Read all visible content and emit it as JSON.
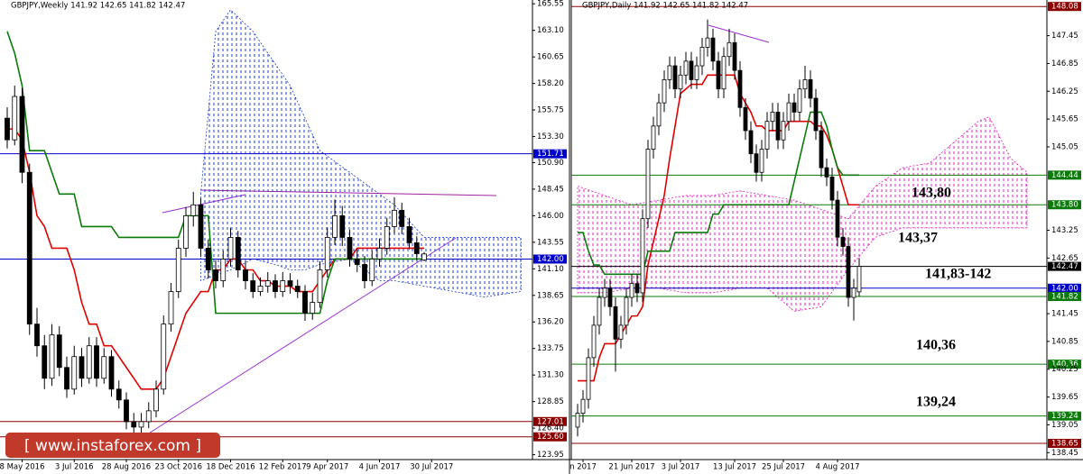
{
  "chart_data": [
    {
      "type": "candlestick",
      "title": "GBPJPY,Weekly  141.92 142.65 141.82 142.47",
      "watermark": "[ www.instaforex.com ]",
      "ylim": [
        123.5,
        165.9
      ],
      "yticks": [
        165.55,
        {
          "value": 163.1,
          "label": "163.10"
        },
        160.65,
        {
          "value": 158.2,
          "label": "158.20"
        },
        155.75,
        {
          "value": 153.3,
          "label": "153.30"
        },
        {
          "value": 150.9,
          "label": "150.90"
        },
        148.45,
        {
          "value": 146,
          "label": "146.00"
        },
        143.55,
        {
          "value": 141.1,
          "label": "141.10"
        },
        138.65,
        {
          "value": 136.2,
          "label": "136.20"
        },
        133.75,
        {
          "value": 131.3,
          "label": "131.30"
        },
        128.85,
        {
          "value": 126.4,
          "label": "126.40"
        },
        123.95
      ],
      "xticks": [
        {
          "value": 2,
          "label": "8 May 2016"
        },
        {
          "value": 9,
          "label": "3 Jul 2016"
        },
        {
          "value": 16,
          "label": "28 Aug 2016"
        },
        {
          "value": 23,
          "label": "23 Oct 2016"
        },
        {
          "value": 30,
          "label": "18 Dec 2016"
        },
        {
          "value": 37,
          "label": "12 Feb 2017"
        },
        {
          "value": 43,
          "label": "9 Apr 2017"
        },
        {
          "value": 50,
          "label": "4 Jun 2017"
        },
        {
          "value": 57,
          "label": "30 Jul 2017"
        }
      ],
      "levels": [
        {
          "value": 151.71,
          "color": "#0000cc"
        },
        {
          "value": 142,
          "label": "142.00",
          "color": "#0000cc"
        },
        {
          "value": 127.01,
          "color": "#8b0000"
        },
        {
          "value": 125.6,
          "label": "125.60",
          "color": "#8b0000"
        }
      ],
      "cloud": {
        "color": "#1f3fd0",
        "x": [
          26,
          28,
          30,
          33,
          36,
          38,
          40,
          42,
          46,
          50,
          52,
          56,
          60,
          64,
          69
        ],
        "top": [
          148,
          163,
          165,
          163,
          160,
          158,
          155,
          152,
          150,
          148,
          147,
          144,
          144,
          144,
          144
        ],
        "bottom": [
          140,
          140.5,
          141,
          142,
          141.5,
          141,
          141,
          141.5,
          142,
          140,
          140,
          139.5,
          139,
          138.5,
          139
        ]
      },
      "lines": [
        {
          "color": "#e00000",
          "values": [
            154,
            154,
            153,
            150,
            146,
            145,
            143,
            143,
            143,
            141,
            138,
            136,
            136,
            134,
            134,
            133,
            132,
            131,
            130,
            130,
            130,
            131,
            133,
            135,
            137,
            138,
            139,
            139,
            141,
            141,
            142,
            142,
            141,
            141,
            140,
            140,
            139.5,
            139.5,
            139.5,
            139,
            139,
            139,
            140,
            141,
            142,
            142,
            142,
            143,
            143,
            143,
            143,
            143,
            143,
            143,
            143,
            143,
            143
          ]
        },
        {
          "color": "#0a7a0a",
          "values": [
            163,
            161,
            158,
            152,
            152,
            152,
            150,
            148,
            148,
            148,
            145,
            145,
            145,
            145,
            145,
            144,
            144,
            144,
            144,
            144,
            144,
            144,
            144,
            144,
            146,
            146,
            146,
            146,
            137,
            137,
            137,
            137,
            137,
            137,
            137,
            137,
            137,
            137,
            137,
            137,
            137,
            137,
            137,
            140,
            142,
            142,
            142,
            142,
            142,
            142,
            142,
            142,
            142,
            142,
            142,
            142,
            142
          ]
        }
      ],
      "candles": [
        [
          155,
          156,
          152.2,
          153
        ],
        [
          153,
          158,
          152.5,
          157
        ],
        [
          157,
          157.8,
          149,
          150
        ],
        [
          150,
          150.8,
          135,
          136
        ],
        [
          136,
          137.5,
          133,
          134
        ],
        [
          134,
          135,
          130,
          131
        ],
        [
          131,
          136,
          130.3,
          135
        ],
        [
          135,
          135.8,
          131.2,
          132
        ],
        [
          132,
          133,
          129.2,
          130
        ],
        [
          130,
          134,
          129.5,
          133
        ],
        [
          133,
          133.8,
          130.2,
          131
        ],
        [
          131,
          134.8,
          130.5,
          134
        ],
        [
          134,
          134.8,
          130.2,
          131
        ],
        [
          131,
          133.8,
          130.5,
          133
        ],
        [
          133,
          133.6,
          129.3,
          130
        ],
        [
          130,
          130.8,
          128.2,
          129
        ],
        [
          129,
          129.7,
          126.3,
          127
        ],
        [
          127,
          127.8,
          125.8,
          126.5
        ],
        [
          126.5,
          127.8,
          125.9,
          127
        ],
        [
          127,
          128.8,
          126.4,
          128
        ],
        [
          128,
          130.8,
          127.4,
          130
        ],
        [
          130,
          136.8,
          129.5,
          136
        ],
        [
          136,
          139.8,
          135.3,
          139
        ],
        [
          139,
          143.8,
          138.4,
          143
        ],
        [
          143,
          146.8,
          142.2,
          146
        ],
        [
          146,
          148.2,
          145,
          147
        ],
        [
          147,
          147.6,
          142.2,
          143
        ],
        [
          143,
          143.8,
          140.2,
          141
        ],
        [
          141,
          141.9,
          139.3,
          140
        ],
        [
          140,
          142.8,
          139.4,
          142
        ],
        [
          142,
          144.9,
          141.3,
          144
        ],
        [
          144,
          144.6,
          140.3,
          141
        ],
        [
          141,
          141.8,
          139.2,
          140
        ],
        [
          140,
          140.7,
          138.4,
          139
        ],
        [
          139,
          140.3,
          138.6,
          139.5
        ],
        [
          139.5,
          140.8,
          138.9,
          140
        ],
        [
          140,
          140.6,
          138.4,
          139
        ],
        [
          139,
          140.8,
          138.5,
          140
        ],
        [
          140,
          140.7,
          138.8,
          139.5
        ],
        [
          139.5,
          140.1,
          138.4,
          139
        ],
        [
          139,
          139.6,
          136.3,
          137
        ],
        [
          137,
          138.9,
          136.4,
          138
        ],
        [
          138,
          141.8,
          137.5,
          141
        ],
        [
          141,
          144.9,
          140.3,
          144
        ],
        [
          144,
          147.5,
          143.3,
          146
        ],
        [
          146,
          146.9,
          143.2,
          144
        ],
        [
          144,
          144.7,
          141.3,
          142
        ],
        [
          142,
          142.9,
          140.8,
          141.5
        ],
        [
          141.5,
          142.3,
          139.3,
          140
        ],
        [
          140,
          142.8,
          139.5,
          142
        ],
        [
          142,
          143.9,
          141.3,
          143
        ],
        [
          143,
          145.8,
          142.4,
          145
        ],
        [
          145,
          147.7,
          144.3,
          146.5
        ],
        [
          146.5,
          147.2,
          144.3,
          145
        ],
        [
          145,
          145.8,
          142.9,
          143.5
        ],
        [
          143.5,
          144.1,
          141.9,
          142.5
        ],
        [
          141.92,
          142.65,
          141.82,
          142.47
        ]
      ]
    },
    {
      "type": "candlestick",
      "title": "GBPJPY,Daily  141.92 142.65 141.82 142.47",
      "annotations": [
        "143,80",
        "143,37",
        "141,83-142",
        "140,36",
        "139,24"
      ],
      "ylim": [
        138.3,
        148.22
      ],
      "yticks": [
        147.45,
        146.85,
        146.25,
        145.65,
        145.05,
        143.25,
        142.65,
        141.45,
        140.85,
        140.25,
        139.65,
        139.05,
        138.45
      ],
      "xticks": [
        {
          "value": 1,
          "label": "n 2017"
        },
        {
          "value": 10,
          "label": "21 Jun 2017"
        },
        {
          "value": 19,
          "label": "3 Jul 2017"
        },
        {
          "value": 29,
          "label": "13 Jul 2017"
        },
        {
          "value": 38,
          "label": "25 Jul 2017"
        },
        {
          "value": 48,
          "label": "4 Aug 2017"
        }
      ],
      "levels": [
        {
          "value": 148.08,
          "color": "#8b0000"
        },
        {
          "value": 144.44,
          "color": "#0a7a0a"
        },
        {
          "value": 143.8,
          "label": "143.80",
          "color": "#0a7a0a"
        },
        {
          "value": 142.47,
          "color": "#000000"
        },
        {
          "value": 142,
          "label": "142.00",
          "color": "#0000cc"
        },
        {
          "value": 141.82,
          "color": "#0a7a0a"
        },
        {
          "value": 140.36,
          "color": "#0a7a0a"
        },
        {
          "value": 139.24,
          "color": "#0a7a0a"
        },
        {
          "value": 138.65,
          "color": "#8b0000"
        }
      ],
      "cloud": {
        "color": "#e020c0",
        "x": [
          0,
          5,
          10,
          15,
          20,
          25,
          30,
          35,
          40,
          45,
          50,
          55,
          60,
          65,
          70,
          74,
          76,
          80,
          83
        ],
        "top": [
          144.2,
          144.0,
          143.8,
          143.9,
          144.0,
          144.0,
          144.1,
          144.0,
          143.9,
          143.7,
          143.5,
          144.2,
          144.6,
          144.7,
          145.2,
          145.6,
          145.7,
          144.8,
          144.5
        ],
        "bottom": [
          141.9,
          141.9,
          142.0,
          142.0,
          141.9,
          141.9,
          142.0,
          142.0,
          141.5,
          141.6,
          142.4,
          143.1,
          143.3,
          143.3,
          143.3,
          143.3,
          143.3,
          143.3,
          143.3
        ]
      },
      "lines": [
        {
          "color": "#e00000",
          "values": [
            140,
            140,
            140,
            140,
            140.5,
            140.8,
            140.8,
            140.8,
            141,
            141.2,
            141.4,
            141.4,
            141.6,
            142.5,
            143,
            143.5,
            144,
            144.8,
            145.5,
            146.2,
            146.3,
            146.4,
            146.4,
            146.4,
            146.6,
            146.6,
            146.6,
            146.6,
            146.6,
            146.6,
            146.2,
            146,
            145.8,
            145.5,
            145.5,
            145.4,
            145.4,
            145.4,
            145.4,
            145.6,
            145.6,
            145.6,
            145.6,
            145.6,
            145.5,
            145.5,
            145.3,
            145,
            144.6,
            144.2,
            143.8,
            143.8,
            143.8
          ]
        },
        {
          "color": "#0a7a0a",
          "values": [
            143.2,
            143.2,
            142.8,
            142.5,
            142.5,
            142.3,
            142.3,
            142.3,
            142.3,
            142.3,
            142.3,
            142.3,
            142.3,
            142.8,
            142.8,
            142.8,
            142.8,
            142.8,
            143.2,
            143.2,
            143.2,
            143.2,
            143.2,
            143.2,
            143.2,
            143.6,
            143.6,
            143.8,
            143.8,
            143.8,
            143.8,
            143.8,
            143.8,
            143.8,
            143.8,
            143.8,
            143.8,
            143.8,
            143.8,
            143.8,
            144.3,
            144.8,
            145.3,
            145.8,
            145.8,
            145.8,
            145.5,
            145.0,
            144.6,
            144.44,
            144.44,
            144.44,
            144.44
          ]
        }
      ],
      "candles": [
        [
          139.0,
          139.5,
          138.8,
          139.3
        ],
        [
          139.3,
          139.8,
          139.1,
          139.6
        ],
        [
          139.6,
          140.7,
          139.4,
          140.5
        ],
        [
          140.5,
          141.4,
          140.3,
          141.2
        ],
        [
          141.2,
          142.0,
          141.0,
          141.8
        ],
        [
          141.8,
          142.2,
          141.6,
          142.0
        ],
        [
          142.0,
          142.2,
          141.4,
          141.6
        ],
        [
          141.6,
          141.8,
          140.2,
          140.9
        ],
        [
          140.9,
          141.4,
          140.7,
          141.2
        ],
        [
          141.2,
          142.0,
          141.0,
          141.8
        ],
        [
          141.8,
          142.3,
          141.6,
          142.1
        ],
        [
          142.1,
          142.3,
          141.7,
          141.9
        ],
        [
          141.9,
          143.7,
          141.7,
          143.5
        ],
        [
          143.5,
          145.2,
          143.3,
          145.0
        ],
        [
          145.0,
          145.7,
          144.8,
          145.5
        ],
        [
          145.5,
          146.2,
          145.3,
          146.0
        ],
        [
          146.0,
          146.7,
          145.8,
          146.5
        ],
        [
          146.5,
          147.0,
          146.3,
          146.8
        ],
        [
          146.8,
          147.0,
          146.1,
          146.3
        ],
        [
          146.3,
          146.8,
          146.1,
          146.6
        ],
        [
          146.6,
          147.1,
          146.4,
          146.9
        ],
        [
          146.9,
          147.1,
          146.3,
          146.5
        ],
        [
          146.5,
          147.0,
          146.3,
          146.8
        ],
        [
          146.8,
          147.4,
          146.6,
          147.2
        ],
        [
          147.2,
          147.8,
          147.0,
          147.4
        ],
        [
          147.4,
          147.6,
          146.7,
          146.9
        ],
        [
          146.9,
          147.1,
          146.1,
          146.3
        ],
        [
          146.3,
          147.2,
          146.1,
          147.0
        ],
        [
          147.0,
          147.6,
          146.8,
          147.3
        ],
        [
          147.3,
          147.5,
          146.5,
          146.7
        ],
        [
          146.7,
          146.9,
          145.7,
          145.9
        ],
        [
          145.9,
          146.1,
          145.2,
          145.4
        ],
        [
          145.4,
          145.6,
          144.7,
          144.9
        ],
        [
          144.9,
          145.1,
          144.3,
          144.5
        ],
        [
          144.5,
          145.2,
          144.3,
          145.0
        ],
        [
          145.0,
          145.8,
          144.8,
          145.6
        ],
        [
          145.6,
          146.0,
          145.4,
          145.8
        ],
        [
          145.8,
          146.0,
          145.0,
          145.2
        ],
        [
          145.2,
          145.8,
          145.0,
          145.6
        ],
        [
          145.6,
          146.2,
          145.4,
          146.0
        ],
        [
          146.0,
          146.2,
          145.6,
          145.8
        ],
        [
          145.8,
          146.5,
          145.6,
          146.3
        ],
        [
          146.3,
          146.8,
          146.1,
          146.5
        ],
        [
          146.5,
          146.7,
          145.9,
          146.1
        ],
        [
          146.1,
          146.3,
          145.2,
          145.4
        ],
        [
          145.4,
          145.6,
          144.4,
          144.6
        ],
        [
          144.6,
          144.8,
          144.2,
          144.4
        ],
        [
          144.4,
          144.6,
          143.7,
          143.9
        ],
        [
          143.9,
          144.1,
          142.9,
          143.1
        ],
        [
          143.1,
          143.3,
          142.7,
          142.9
        ],
        [
          142.9,
          143.1,
          141.6,
          141.8
        ],
        [
          141.8,
          142.2,
          141.3,
          142.0
        ],
        [
          141.92,
          142.65,
          141.82,
          142.47
        ]
      ]
    }
  ]
}
